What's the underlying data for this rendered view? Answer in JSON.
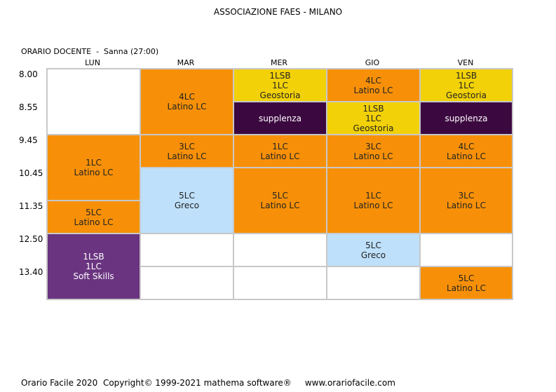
{
  "school_name": "ASSOCIAZIONE FAES - MILANO",
  "teacher_line": "ORARIO DOCENTE  -  Sanna (27:00)",
  "days": [
    "LUN",
    "MAR",
    "MER",
    "GIO",
    "VEN"
  ],
  "times": [
    "8.00",
    "8.55",
    "9.45",
    "10.45",
    "11.35",
    "12.50",
    "13.40"
  ],
  "lessons": {
    "lun_1_2": [],
    "lun_3_4": [
      "1LC",
      "Latino LC"
    ],
    "lun_5": [
      "5LC",
      "Latino LC"
    ],
    "lun_6_7": [
      "1LSB",
      "1LC",
      "Soft Skills"
    ],
    "mar_1_2": [
      "4LC",
      "Latino LC"
    ],
    "mar_3": [
      "3LC",
      "Latino LC"
    ],
    "mar_4_5": [
      "5LC",
      "Greco"
    ],
    "mar_6": [],
    "mar_7": [],
    "mer_1": [
      "1LSB",
      "1LC",
      "Geostoria"
    ],
    "mer_2": [
      "supplenza"
    ],
    "mer_3": [
      "1LC",
      "Latino LC"
    ],
    "mer_4_5": [
      "5LC",
      "Latino LC"
    ],
    "mer_6": [],
    "mer_7": [],
    "gio_1": [
      "4LC",
      "Latino LC"
    ],
    "gio_2": [
      "1LSB",
      "1LC",
      "Geostoria"
    ],
    "gio_3": [
      "3LC",
      "Latino LC"
    ],
    "gio_4_5": [
      "1LC",
      "Latino LC"
    ],
    "gio_6": [
      "5LC",
      "Greco"
    ],
    "gio_7": [],
    "ven_1": [
      "1LSB",
      "1LC",
      "Geostoria"
    ],
    "ven_2": [
      "supplenza"
    ],
    "ven_3": [
      "4LC",
      "Latino LC"
    ],
    "ven_4_5": [
      "3LC",
      "Latino LC"
    ],
    "ven_6": [],
    "ven_7": [
      "5LC",
      "Latino LC"
    ]
  },
  "colors": {
    "latino": "#f79008",
    "geostoria": "#f2d108",
    "supplenza": "#3c0840",
    "greco": "#bee0fa",
    "soft_skills": "#6a3480"
  },
  "footer": "Orario Facile 2020  Copyright© 1999-2021 mathema software®     www.orariofacile.com"
}
